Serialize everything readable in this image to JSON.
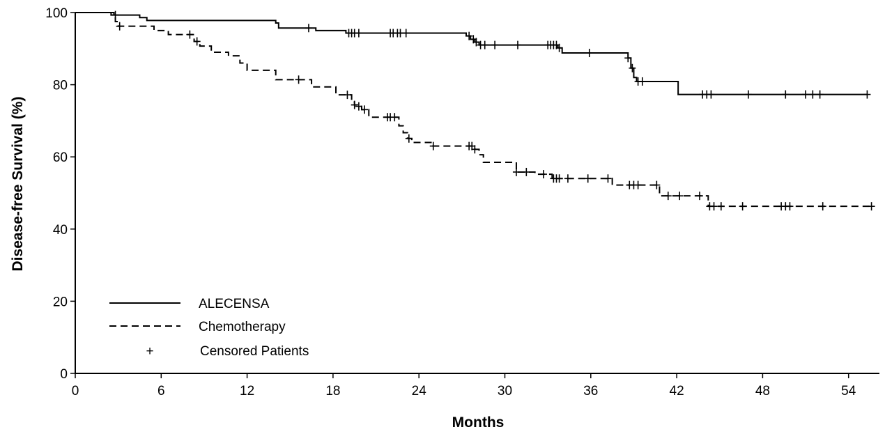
{
  "chart_data": {
    "type": "line",
    "subtype": "kaplan-meier step curve",
    "xlabel": "Months",
    "ylabel": "Disease-free Survival (%)",
    "xlim": [
      0,
      56
    ],
    "ylim": [
      0,
      100
    ],
    "xticks": [
      0,
      6,
      12,
      18,
      24,
      30,
      36,
      42,
      48,
      54
    ],
    "yticks": [
      0,
      20,
      40,
      60,
      80,
      100
    ],
    "grid": false,
    "legend_position": "bottom-left",
    "legend": {
      "series1_label": "ALECENSA",
      "series2_label": "Chemotherapy",
      "censor_symbol": "+",
      "censor_label": "Censored Patients"
    },
    "series": [
      {
        "name": "ALECENSA",
        "line_style": "solid",
        "color": "#000000",
        "steps": [
          [
            0,
            100
          ],
          [
            2.7,
            99.3
          ],
          [
            4.5,
            98.6
          ],
          [
            5.0,
            97.8
          ],
          [
            14.0,
            97.1
          ],
          [
            14.2,
            95.7
          ],
          [
            16.8,
            95.0
          ],
          [
            18.9,
            94.3
          ],
          [
            27.3,
            93.5
          ],
          [
            27.6,
            92.6
          ],
          [
            27.9,
            91.8
          ],
          [
            28.2,
            91.0
          ],
          [
            33.7,
            90.2
          ],
          [
            34.0,
            88.8
          ],
          [
            38.6,
            87.4
          ],
          [
            38.8,
            84.6
          ],
          [
            39.0,
            82.0
          ],
          [
            39.2,
            80.9
          ],
          [
            42.1,
            77.3
          ]
        ],
        "end_x": 55.3,
        "censored_x": [
          2.8,
          16.3,
          19.1,
          19.3,
          19.5,
          19.8,
          22.0,
          22.2,
          22.5,
          22.7,
          23.1,
          27.5,
          27.8,
          28.0,
          28.3,
          28.6,
          29.3,
          30.9,
          33.0,
          33.2,
          33.4,
          33.6,
          33.8,
          35.9,
          38.6,
          38.9,
          39.3,
          39.6,
          43.8,
          44.1,
          44.4,
          47.0,
          49.6,
          51.0,
          51.5,
          52.0,
          55.3
        ]
      },
      {
        "name": "Chemotherapy",
        "line_style": "dashed",
        "color": "#000000",
        "steps": [
          [
            0,
            100
          ],
          [
            2.5,
            99.3
          ],
          [
            2.8,
            97.5
          ],
          [
            3.0,
            96.2
          ],
          [
            5.5,
            95.0
          ],
          [
            6.5,
            93.9
          ],
          [
            8.3,
            92.0
          ],
          [
            8.7,
            90.7
          ],
          [
            9.5,
            89.0
          ],
          [
            10.7,
            88.0
          ],
          [
            11.5,
            86.0
          ],
          [
            12.0,
            84.0
          ],
          [
            14.0,
            81.4
          ],
          [
            16.5,
            79.4
          ],
          [
            18.2,
            77.2
          ],
          [
            19.3,
            75.2
          ],
          [
            19.5,
            74.4
          ],
          [
            19.7,
            74.0
          ],
          [
            20.0,
            73.1
          ],
          [
            20.5,
            71.0
          ],
          [
            22.6,
            68.6
          ],
          [
            22.9,
            66.7
          ],
          [
            23.2,
            65.1
          ],
          [
            23.5,
            64.0
          ],
          [
            24.9,
            63.0
          ],
          [
            27.9,
            62.1
          ],
          [
            28.2,
            60.6
          ],
          [
            28.5,
            58.5
          ],
          [
            30.8,
            55.8
          ],
          [
            32.1,
            55.2
          ],
          [
            33.3,
            54.0
          ],
          [
            37.5,
            52.2
          ],
          [
            40.8,
            49.2
          ],
          [
            44.2,
            46.3
          ]
        ],
        "end_x": 55.7,
        "censored_x": [
          3.1,
          8.0,
          8.5,
          15.6,
          19.0,
          19.5,
          19.8,
          20.2,
          21.8,
          22.0,
          22.3,
          23.3,
          25.0,
          27.5,
          27.7,
          27.9,
          30.8,
          31.5,
          32.7,
          33.4,
          33.6,
          33.8,
          34.4,
          35.8,
          37.2,
          38.7,
          39.0,
          39.3,
          40.6,
          41.4,
          42.2,
          43.6,
          44.3,
          44.6,
          45.1,
          46.6,
          49.3,
          49.6,
          49.9,
          52.2,
          55.6
        ]
      }
    ]
  }
}
